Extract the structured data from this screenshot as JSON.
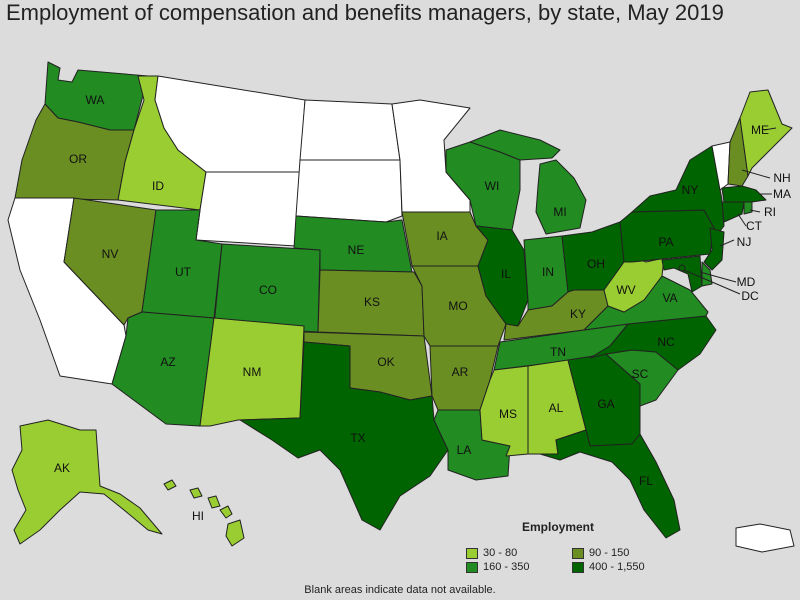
{
  "title": "Employment of compensation and benefits managers, by state, May 2019",
  "colors": {
    "c1": "#9acd32",
    "c2": "#6b8e23",
    "c3": "#228b22",
    "c4": "#006400",
    "nodata": "#ffffff"
  },
  "legend": {
    "title": "Employment",
    "items": [
      {
        "label": "30 - 80",
        "color": "#9acd32"
      },
      {
        "label": "90 - 150",
        "color": "#6b8e23"
      },
      {
        "label": "160 - 350",
        "color": "#228b22"
      },
      {
        "label": "400 - 1,550",
        "color": "#006400"
      }
    ]
  },
  "note": "Blank areas indicate data not available.",
  "states": [
    {
      "code": "WA",
      "cls": "c3"
    },
    {
      "code": "OR",
      "cls": "c2"
    },
    {
      "code": "CA",
      "cls": "nodata"
    },
    {
      "code": "ID",
      "cls": "c1"
    },
    {
      "code": "NV",
      "cls": "c2"
    },
    {
      "code": "MT",
      "cls": "nodata"
    },
    {
      "code": "WY",
      "cls": "nodata"
    },
    {
      "code": "UT",
      "cls": "c3"
    },
    {
      "code": "AZ",
      "cls": "c3"
    },
    {
      "code": "CO",
      "cls": "c3"
    },
    {
      "code": "NM",
      "cls": "c1"
    },
    {
      "code": "ND",
      "cls": "nodata"
    },
    {
      "code": "SD",
      "cls": "nodata"
    },
    {
      "code": "NE",
      "cls": "c3"
    },
    {
      "code": "KS",
      "cls": "c2"
    },
    {
      "code": "OK",
      "cls": "c2"
    },
    {
      "code": "TX",
      "cls": "c4"
    },
    {
      "code": "MN",
      "cls": "nodata"
    },
    {
      "code": "IA",
      "cls": "c2"
    },
    {
      "code": "MO",
      "cls": "c2"
    },
    {
      "code": "AR",
      "cls": "c2"
    },
    {
      "code": "LA",
      "cls": "c3"
    },
    {
      "code": "WI",
      "cls": "c3"
    },
    {
      "code": "IL",
      "cls": "c4"
    },
    {
      "code": "MI",
      "cls": "c3"
    },
    {
      "code": "IN",
      "cls": "c3"
    },
    {
      "code": "OH",
      "cls": "c4"
    },
    {
      "code": "KY",
      "cls": "c2"
    },
    {
      "code": "TN",
      "cls": "c3"
    },
    {
      "code": "MS",
      "cls": "c1"
    },
    {
      "code": "AL",
      "cls": "c1"
    },
    {
      "code": "GA",
      "cls": "c4"
    },
    {
      "code": "FL",
      "cls": "c4"
    },
    {
      "code": "SC",
      "cls": "c3"
    },
    {
      "code": "NC",
      "cls": "c4"
    },
    {
      "code": "VA",
      "cls": "c3"
    },
    {
      "code": "WV",
      "cls": "c1"
    },
    {
      "code": "PA",
      "cls": "c4"
    },
    {
      "code": "NY",
      "cls": "c4"
    },
    {
      "code": "VT",
      "cls": "nodata"
    },
    {
      "code": "NH",
      "cls": "c2"
    },
    {
      "code": "ME",
      "cls": "c1"
    },
    {
      "code": "MA",
      "cls": "c4"
    },
    {
      "code": "RI",
      "cls": "c3"
    },
    {
      "code": "CT",
      "cls": "c4"
    },
    {
      "code": "NJ",
      "cls": "c4"
    },
    {
      "code": "DE",
      "cls": "c3"
    },
    {
      "code": "MD",
      "cls": "c4"
    },
    {
      "code": "DC",
      "cls": "c4"
    },
    {
      "code": "AK",
      "cls": "c1"
    },
    {
      "code": "HI",
      "cls": "c1"
    },
    {
      "code": "PR",
      "cls": "nodata"
    }
  ]
}
